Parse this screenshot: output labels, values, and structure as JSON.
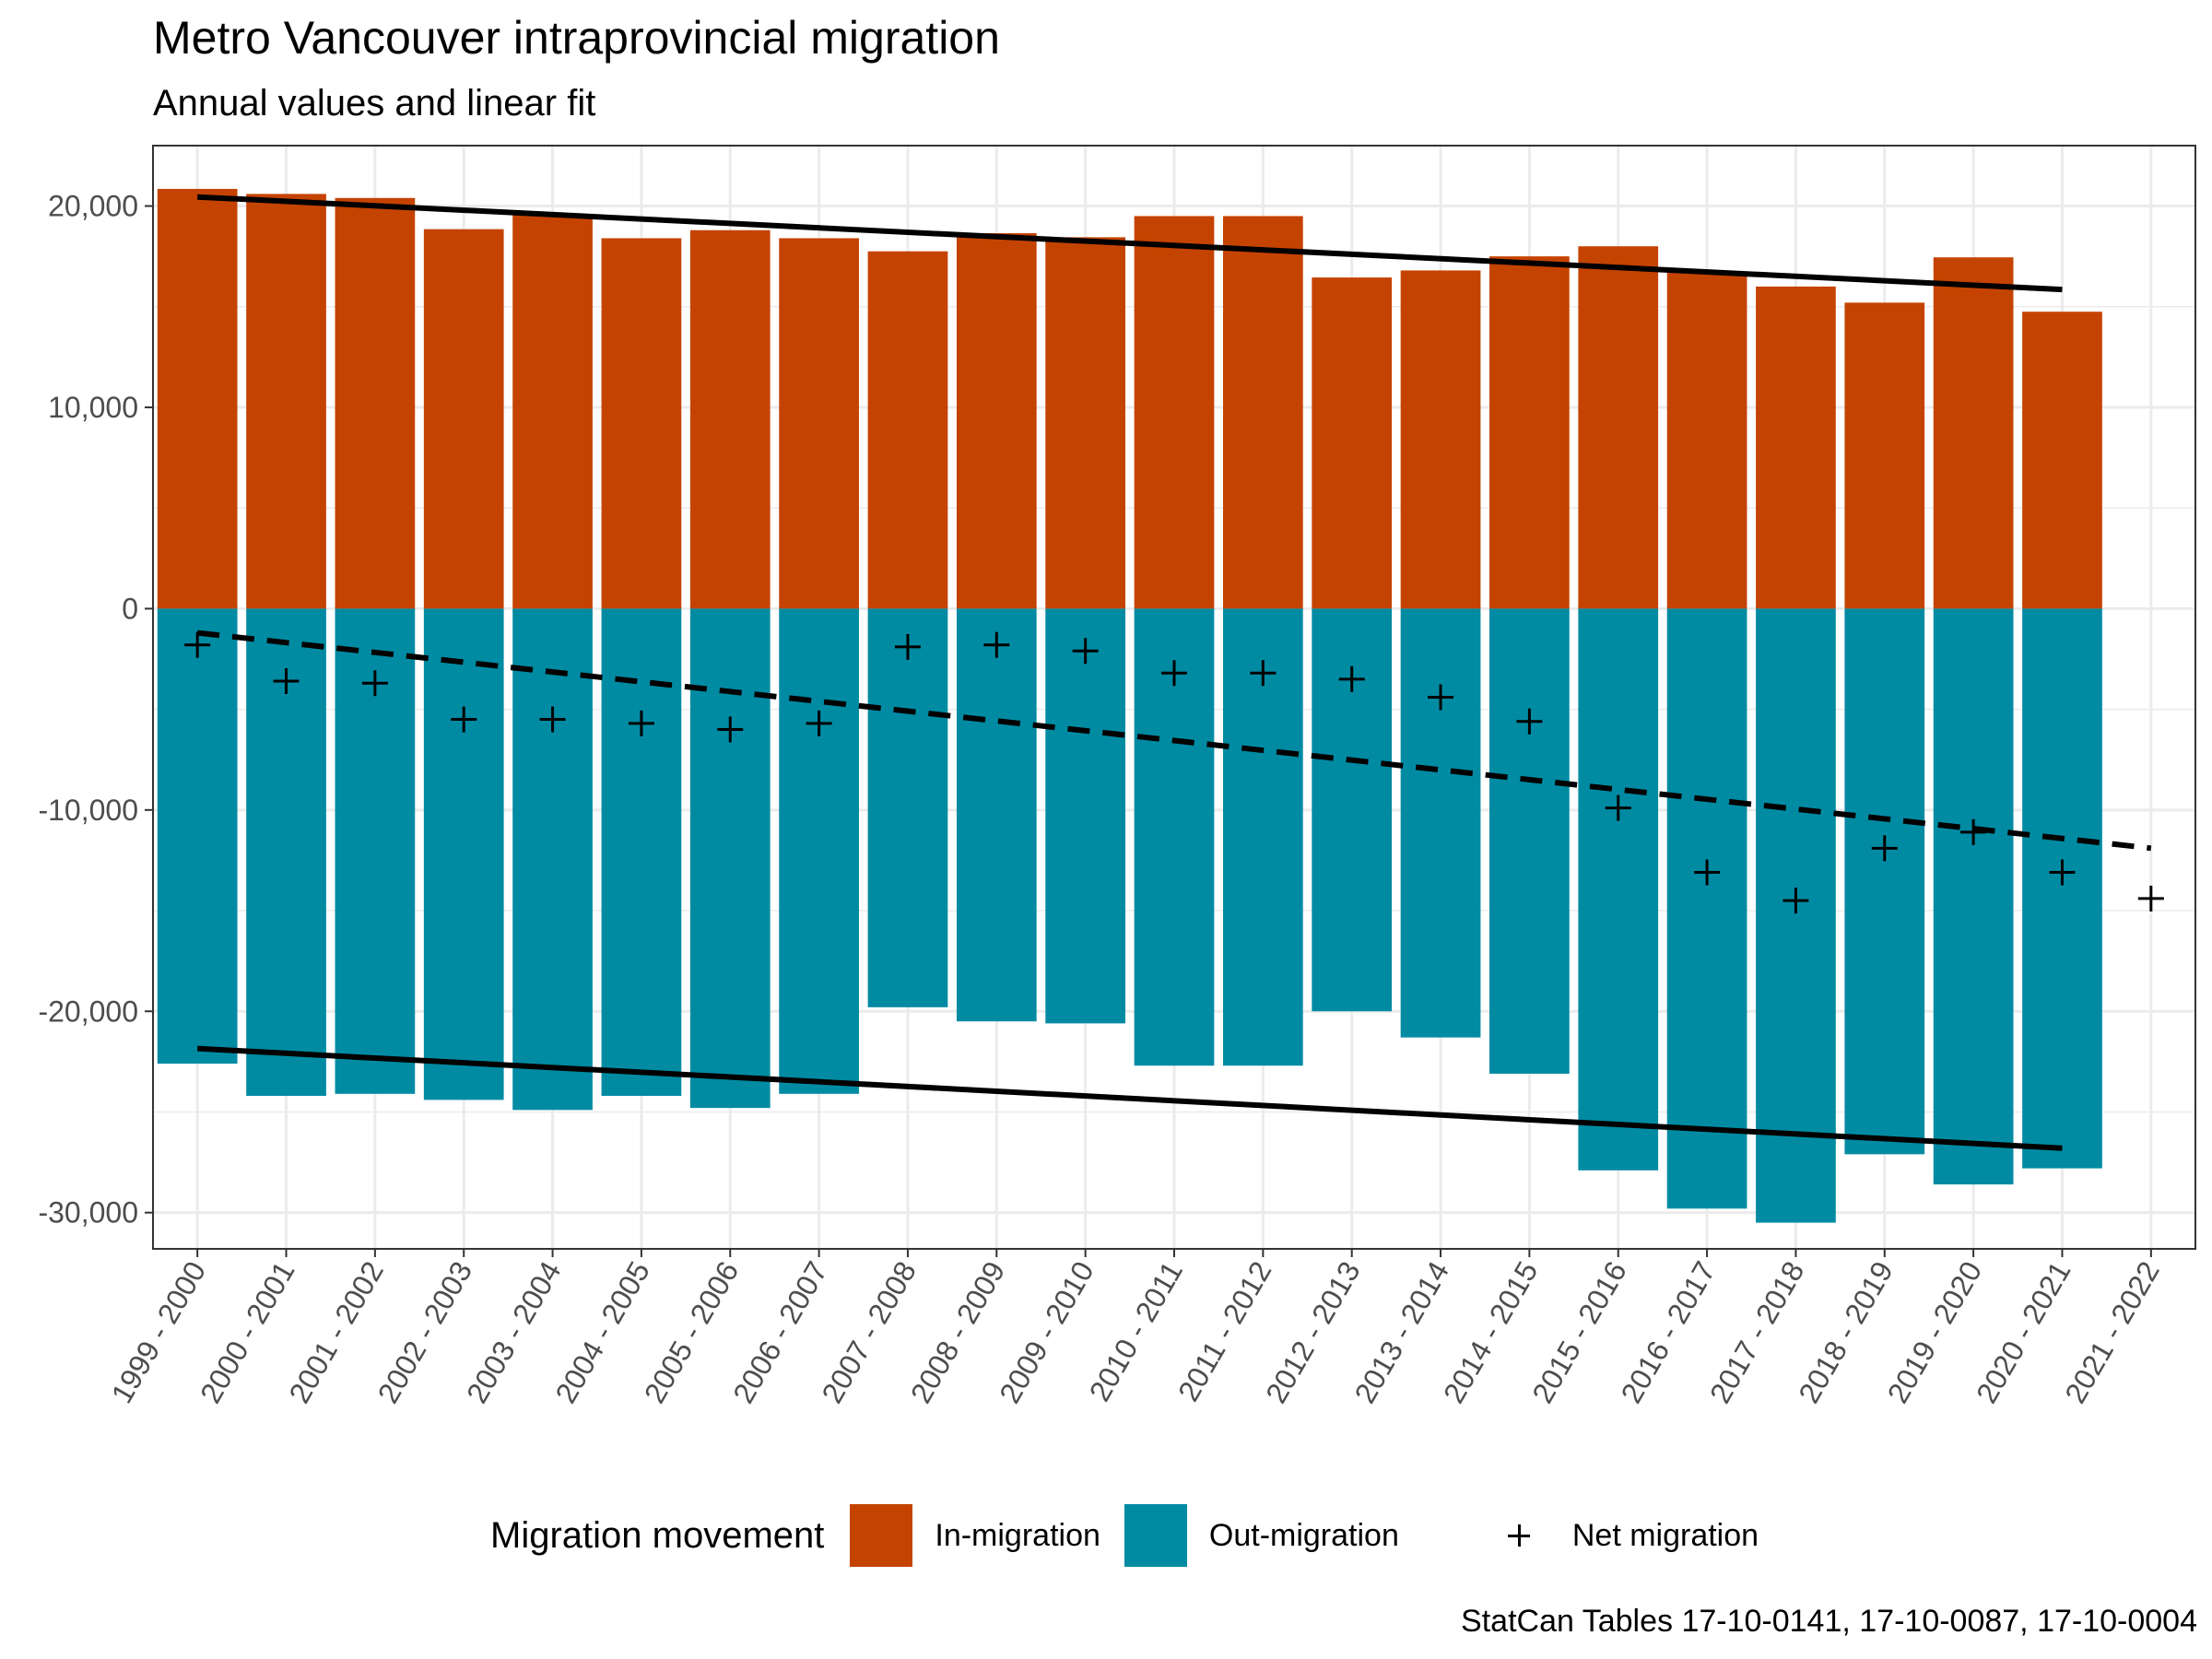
{
  "title": "Metro Vancouver intraprovincial migration",
  "subtitle": "Annual values and linear fit",
  "caption": "StatCan Tables 17-10-0141, 17-10-0087, 17-10-0004",
  "legend": {
    "title": "Migration movement",
    "items": [
      {
        "label": "In-migration",
        "color": "#c54300",
        "shape": "square"
      },
      {
        "label": "Out-migration",
        "color": "#008ba3",
        "shape": "square"
      },
      {
        "label": "Net migration",
        "color": "#000000",
        "shape": "plus"
      }
    ]
  },
  "chart_data": {
    "type": "bar",
    "title": "Metro Vancouver intraprovincial migration",
    "subtitle": "Annual values and linear fit",
    "xlabel": "",
    "ylabel": "",
    "ylim": [
      -31800,
      23000
    ],
    "yticks": [
      20000,
      10000,
      0,
      -10000,
      -20000,
      -30000
    ],
    "ytick_labels": [
      "20,000",
      "10,000",
      "0",
      "-10,000",
      "-20,000",
      "-30,000"
    ],
    "grid": true,
    "legend_position": "bottom",
    "categories": [
      "1999 - 2000",
      "2000 - 2001",
      "2001 - 2002",
      "2002 - 2003",
      "2003 - 2004",
      "2004 - 2005",
      "2005 - 2006",
      "2006 - 2007",
      "2007 - 2008",
      "2008 - 2009",
      "2009 - 2010",
      "2010 - 2011",
      "2011 - 2012",
      "2012 - 2013",
      "2013 - 2014",
      "2014 - 2015",
      "2015 - 2016",
      "2016 - 2017",
      "2017 - 2018",
      "2018 - 2019",
      "2019 - 2020",
      "2020 - 2021",
      "2021 - 2022"
    ],
    "series": [
      {
        "name": "In-migration",
        "type": "bar",
        "color": "#c54300",
        "values": [
          20850,
          20600,
          20400,
          18850,
          19550,
          18400,
          18800,
          18400,
          17750,
          18650,
          18450,
          19500,
          19500,
          16450,
          16800,
          17500,
          18000,
          16700,
          16000,
          15200,
          17450,
          14750,
          null
        ]
      },
      {
        "name": "Out-migration",
        "type": "bar",
        "color": "#008ba3",
        "values": [
          -22600,
          -24200,
          -24100,
          -24400,
          -24900,
          -24200,
          -24800,
          -24100,
          -19800,
          -20500,
          -20600,
          -22700,
          -22700,
          -20000,
          -21300,
          -23100,
          -27900,
          -29800,
          -30500,
          -27100,
          -28600,
          -27800,
          null
        ]
      },
      {
        "name": "Net migration",
        "type": "scatter",
        "marker": "plus",
        "color": "#000000",
        "values": [
          -1800,
          -3600,
          -3700,
          -5500,
          -5500,
          -5700,
          -6000,
          -5700,
          -1900,
          -1800,
          -2100,
          -3200,
          -3200,
          -3500,
          -4400,
          -5600,
          -9900,
          -13100,
          -14500,
          -11900,
          -11100,
          -13100,
          -14400
        ]
      }
    ],
    "fit_lines": [
      {
        "of": "In-migration",
        "style": "solid",
        "from_category": "1999 - 2000",
        "to_category": "2020 - 2021",
        "y_start": 20450,
        "y_end": 15850
      },
      {
        "of": "Out-migration",
        "style": "solid",
        "from_category": "1999 - 2000",
        "to_category": "2020 - 2021",
        "y_start": -21850,
        "y_end": -26800
      },
      {
        "of": "Net migration",
        "style": "dashed",
        "from_category": "1999 - 2000",
        "to_category": "2021 - 2022",
        "y_start": -1200,
        "y_end": -11900
      }
    ]
  }
}
